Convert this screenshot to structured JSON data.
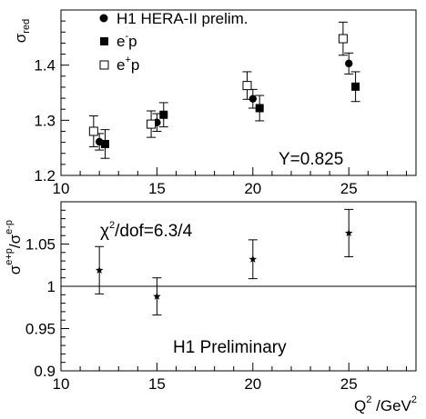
{
  "chart_data": [
    {
      "type": "scatter",
      "ylabel": "σ",
      "ylabel_sub": "red",
      "xlim": [
        10,
        28.5
      ],
      "ylim": [
        1.2,
        1.5
      ],
      "xticks": [
        "10",
        "15",
        "20",
        "25"
      ],
      "yticks": [
        "1.2",
        "1.3",
        "1.4"
      ],
      "yticks_values": [
        1.2,
        1.3,
        1.4
      ],
      "legend_position": "top-left",
      "annotation": "Y=0.825",
      "series": [
        {
          "name": "H1 HERA-II prelim.",
          "marker": "filled-circle",
          "points": [
            {
              "x": 12.0,
              "y": 1.261,
              "err": 0.015
            },
            {
              "x": 15.0,
              "y": 1.296,
              "err": 0.016
            },
            {
              "x": 20.0,
              "y": 1.339,
              "err": 0.017
            },
            {
              "x": 25.0,
              "y": 1.403,
              "err": 0.019
            }
          ]
        },
        {
          "name": "e",
          "name_sup": "-",
          "name_tail": "p",
          "marker": "filled-square",
          "points": [
            {
              "x": 12.3,
              "y": 1.257,
              "err": 0.026
            },
            {
              "x": 15.35,
              "y": 1.31,
              "err": 0.022
            },
            {
              "x": 20.35,
              "y": 1.322,
              "err": 0.023
            },
            {
              "x": 25.35,
              "y": 1.361,
              "err": 0.027
            }
          ]
        },
        {
          "name": "e",
          "name_sup": "+",
          "name_tail": "p",
          "marker": "open-square",
          "points": [
            {
              "x": 11.7,
              "y": 1.28,
              "err": 0.028
            },
            {
              "x": 14.7,
              "y": 1.293,
              "err": 0.024
            },
            {
              "x": 19.7,
              "y": 1.363,
              "err": 0.025
            },
            {
              "x": 24.7,
              "y": 1.448,
              "err": 0.03
            }
          ]
        }
      ]
    },
    {
      "type": "scatter",
      "ylabel": "σ",
      "ylabel_sup1": "e+p",
      "ylabel_mid": "/σ",
      "ylabel_sup2": "e-p",
      "xlabel_pre": "Q",
      "xlabel_sup1": "2",
      "xlabel_mid": " /GeV",
      "xlabel_sup2": "2",
      "xlim": [
        10,
        28.5
      ],
      "ylim": [
        0.9,
        1.1
      ],
      "xticks": [
        "10",
        "15",
        "20",
        "25"
      ],
      "yticks": [
        "0.9",
        "0.95",
        "1",
        "1.05"
      ],
      "yticks_values": [
        0.9,
        0.95,
        1.0,
        1.05
      ],
      "reference_line": 1.0,
      "annotation_chi_symbol": "χ",
      "annotation_chi_sup": "2",
      "annotation_chi_text": "/dof=6.3/4",
      "annotation_label": "H1 Preliminary",
      "series": [
        {
          "marker": "star",
          "points": [
            {
              "x": 12.0,
              "y": 1.019,
              "err": 0.028
            },
            {
              "x": 15.0,
              "y": 0.988,
              "err": 0.022
            },
            {
              "x": 20.0,
              "y": 1.032,
              "err": 0.023
            },
            {
              "x": 25.0,
              "y": 1.063,
              "err": 0.028
            }
          ]
        }
      ]
    }
  ]
}
